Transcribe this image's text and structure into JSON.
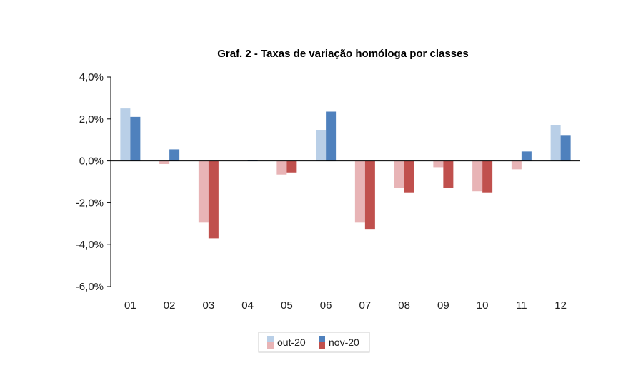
{
  "chart_data": {
    "type": "bar",
    "title": "Graf. 2 - Taxas de variação homóloga por classes",
    "xlabel": "",
    "ylabel": "",
    "categories": [
      "01",
      "02",
      "03",
      "04",
      "05",
      "06",
      "07",
      "08",
      "09",
      "10",
      "11",
      "12"
    ],
    "series": [
      {
        "name": "out-20",
        "values": [
          2.5,
          -0.15,
          -2.95,
          0.0,
          -0.65,
          1.45,
          -2.95,
          -1.3,
          -0.3,
          -1.45,
          -0.4,
          1.7
        ]
      },
      {
        "name": "nov-20",
        "values": [
          2.1,
          0.55,
          -3.7,
          0.05,
          -0.55,
          2.35,
          -3.25,
          -1.5,
          -1.3,
          -1.5,
          0.45,
          1.2
        ]
      }
    ],
    "ylim": [
      -6,
      4
    ],
    "yticks": [
      4,
      2,
      0,
      -2,
      -4,
      -6
    ],
    "ytick_labels": [
      "4,0%",
      "2,0%",
      "0,0%",
      "-2,0%",
      "-4,0%",
      "-6,0%"
    ],
    "grid": false,
    "legend_position": "bottom"
  },
  "colors": {
    "out20_positive": "#b9cfe7",
    "out20_negative": "#e8b4b6",
    "nov20_positive": "#4f81bd",
    "nov20_negative": "#c0504d",
    "axis": "#000000"
  }
}
